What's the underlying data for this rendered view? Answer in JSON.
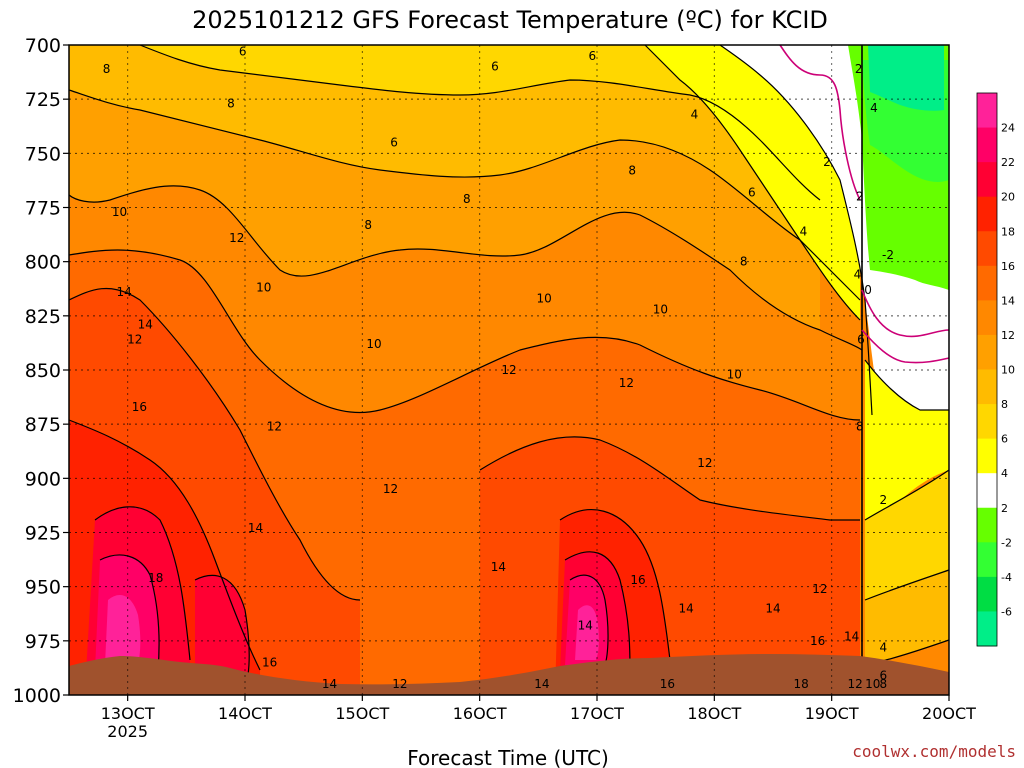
{
  "chart_data": {
    "type": "heatmap",
    "title": "2025101212 GFS Forecast Temperature (ºC) for KCID",
    "xlabel": "Forecast Time (UTC)",
    "credit": "coolwx.com/models",
    "x_ticks": [
      {
        "value": 13,
        "label": "13OCT",
        "sublabel": "2025"
      },
      {
        "value": 14,
        "label": "14OCT"
      },
      {
        "value": 15,
        "label": "15OCT"
      },
      {
        "value": 16,
        "label": "16OCT"
      },
      {
        "value": 17,
        "label": "17OCT"
      },
      {
        "value": 18,
        "label": "18OCT"
      },
      {
        "value": 19,
        "label": "19OCT"
      },
      {
        "value": 20,
        "label": "20OCT"
      }
    ],
    "xlim": [
      12.5,
      20.0
    ],
    "y_ticks": [
      700,
      725,
      750,
      775,
      800,
      825,
      850,
      875,
      900,
      925,
      950,
      975,
      1000
    ],
    "ylim": [
      700,
      1000
    ],
    "ylabel": "",
    "grid": true,
    "colorbar": {
      "levels": [
        -6,
        -4,
        -2,
        2,
        4,
        6,
        8,
        10,
        12,
        14,
        16,
        18,
        20,
        22,
        24
      ],
      "colors": [
        "#00ee88",
        "#00dd44",
        "#33ff33",
        "#66ff00",
        "#ffffff",
        "#ffff00",
        "#ffd700",
        "#ffbb00",
        "#ffa000",
        "#ff8800",
        "#ff6a00",
        "#ff4a00",
        "#ff2200",
        "#ff0033",
        "#ff0066",
        "#ff2299"
      ]
    },
    "contour_labels": [
      {
        "text": "6",
        "x": 13.98,
        "p": 703
      },
      {
        "text": "8",
        "x": 12.82,
        "p": 711
      },
      {
        "text": "6",
        "x": 16.13,
        "p": 710
      },
      {
        "text": "6",
        "x": 16.96,
        "p": 705
      },
      {
        "text": "2",
        "x": 19.23,
        "p": 711
      },
      {
        "text": "8",
        "x": 13.88,
        "p": 727
      },
      {
        "text": "6",
        "x": 15.27,
        "p": 745
      },
      {
        "text": "4",
        "x": 17.83,
        "p": 732
      },
      {
        "text": "4",
        "x": 19.36,
        "p": 729
      },
      {
        "text": "8",
        "x": 17.3,
        "p": 758
      },
      {
        "text": "2",
        "x": 18.96,
        "p": 754
      },
      {
        "text": "6",
        "x": 18.32,
        "p": 768
      },
      {
        "text": "10",
        "x": 12.93,
        "p": 777
      },
      {
        "text": "8",
        "x": 15.89,
        "p": 771
      },
      {
        "text": "8",
        "x": 15.05,
        "p": 783
      },
      {
        "text": "2",
        "x": 19.24,
        "p": 770
      },
      {
        "text": "4",
        "x": 18.76,
        "p": 786
      },
      {
        "text": "12",
        "x": 13.93,
        "p": 789
      },
      {
        "text": "8",
        "x": 18.25,
        "p": 800
      },
      {
        "text": "10",
        "x": 14.16,
        "p": 812
      },
      {
        "text": "-2",
        "x": 19.48,
        "p": 797
      },
      {
        "text": "4",
        "x": 19.22,
        "p": 806
      },
      {
        "text": "0",
        "x": 19.31,
        "p": 813
      },
      {
        "text": "14",
        "x": 12.97,
        "p": 814
      },
      {
        "text": "10",
        "x": 16.55,
        "p": 817
      },
      {
        "text": "10",
        "x": 17.54,
        "p": 822
      },
      {
        "text": "14",
        "x": 13.15,
        "p": 829
      },
      {
        "text": "12",
        "x": 13.06,
        "p": 836
      },
      {
        "text": "10",
        "x": 15.1,
        "p": 838
      },
      {
        "text": "6",
        "x": 19.25,
        "p": 836
      },
      {
        "text": "12",
        "x": 16.25,
        "p": 850
      },
      {
        "text": "12",
        "x": 17.25,
        "p": 856
      },
      {
        "text": "10",
        "x": 18.17,
        "p": 852
      },
      {
        "text": "16",
        "x": 13.1,
        "p": 867
      },
      {
        "text": "12",
        "x": 14.25,
        "p": 876
      },
      {
        "text": "8",
        "x": 19.24,
        "p": 876
      },
      {
        "text": "12",
        "x": 17.92,
        "p": 893
      },
      {
        "text": "12",
        "x": 15.24,
        "p": 905
      },
      {
        "text": "2",
        "x": 19.44,
        "p": 910
      },
      {
        "text": "14",
        "x": 14.09,
        "p": 923
      },
      {
        "text": "14",
        "x": 16.16,
        "p": 941
      },
      {
        "text": "18",
        "x": 13.24,
        "p": 946
      },
      {
        "text": "16",
        "x": 17.35,
        "p": 947
      },
      {
        "text": "12",
        "x": 18.9,
        "p": 951
      },
      {
        "text": "14",
        "x": 17.76,
        "p": 960
      },
      {
        "text": "14",
        "x": 18.5,
        "p": 960
      },
      {
        "text": "14",
        "x": 16.9,
        "p": 968
      },
      {
        "text": "16",
        "x": 18.88,
        "p": 975
      },
      {
        "text": "14",
        "x": 19.17,
        "p": 973
      },
      {
        "text": "16",
        "x": 14.21,
        "p": 985
      },
      {
        "text": "4",
        "x": 19.44,
        "p": 978
      },
      {
        "text": "12",
        "x": 15.32,
        "p": 1001
      },
      {
        "text": "6",
        "x": 19.44,
        "p": 991
      },
      {
        "text": "10",
        "x": 19.35,
        "p": 1006
      },
      {
        "text": "16",
        "x": 17.6,
        "p": 1012
      },
      {
        "text": "14",
        "x": 14.72,
        "p": 1015
      },
      {
        "text": "14",
        "x": 16.53,
        "p": 1006
      },
      {
        "text": "18",
        "x": 18.74,
        "p": 1023
      },
      {
        "text": "8",
        "x": 19.44,
        "p": 1027
      },
      {
        "text": "12",
        "x": 19.2,
        "p": 1045
      }
    ]
  },
  "colors": {
    "background": "#ffffff",
    "frame": "#000000",
    "ground": "#a0522d",
    "grid": "#000000"
  }
}
